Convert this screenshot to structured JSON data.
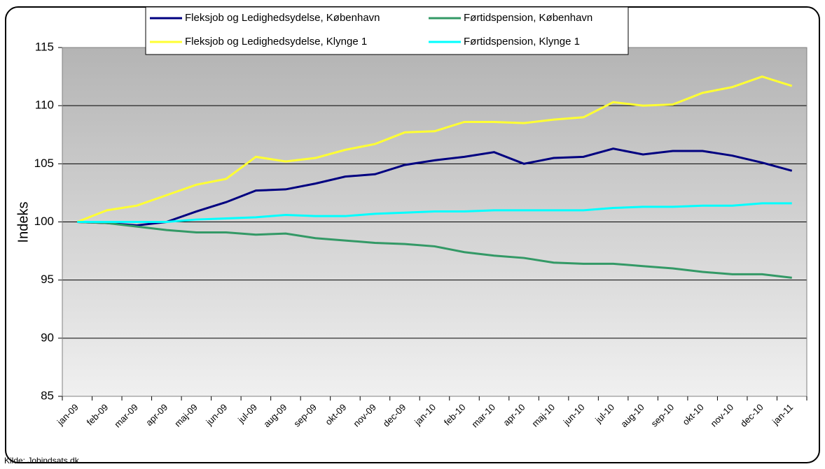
{
  "chart_data": {
    "type": "line",
    "y_label": "Indeks",
    "source": "Kilde: Jobindsats.dk",
    "categories": [
      "jan-09",
      "feb-09",
      "mar-09",
      "apr-09",
      "maj-09",
      "jun-09",
      "jul-09",
      "aug-09",
      "sep-09",
      "okt-09",
      "nov-09",
      "dec-09",
      "jan-10",
      "feb-10",
      "mar-10",
      "apr-10",
      "maj-10",
      "jun-10",
      "jul-10",
      "aug-10",
      "sep-10",
      "okt-10",
      "nov-10",
      "dec-10",
      "jan-11"
    ],
    "series": [
      {
        "name": "Fleksjob og Ledighedsydelse, København",
        "color": "#000080",
        "values": [
          100,
          99.9,
          99.7,
          100,
          100.9,
          101.7,
          102.7,
          102.8,
          103.3,
          103.9,
          104.1,
          104.9,
          105.3,
          105.6,
          106.0,
          105.0,
          105.5,
          105.6,
          106.3,
          105.8,
          106.1,
          106.1,
          105.7,
          105.1,
          104.4
        ]
      },
      {
        "name": "Førtidspension, København",
        "color": "#339966",
        "values": [
          100,
          99.9,
          99.6,
          99.3,
          99.1,
          99.1,
          98.9,
          99.0,
          98.6,
          98.4,
          98.2,
          98.1,
          97.9,
          97.4,
          97.1,
          96.9,
          96.5,
          96.4,
          96.4,
          96.2,
          96.0,
          95.7,
          95.5,
          95.5,
          95.2
        ]
      },
      {
        "name": "Fleksjob og Ledighedsydelse, Klynge 1",
        "color": "#ffff33",
        "values": [
          100,
          101.0,
          101.4,
          102.3,
          103.2,
          103.7,
          105.6,
          105.2,
          105.5,
          106.2,
          106.7,
          107.7,
          107.8,
          108.6,
          108.6,
          108.5,
          108.8,
          109.0,
          110.3,
          110.0,
          110.1,
          111.1,
          111.6,
          112.5,
          111.7
        ]
      },
      {
        "name": "Førtidspension, Klynge 1",
        "color": "#00ffff",
        "values": [
          100,
          100,
          100,
          100,
          100.2,
          100.3,
          100.4,
          100.6,
          100.5,
          100.5,
          100.7,
          100.8,
          100.9,
          100.9,
          101.0,
          101.0,
          101.0,
          101.0,
          101.2,
          101.3,
          101.3,
          101.4,
          101.4,
          101.6,
          101.6
        ]
      }
    ],
    "ylim": [
      85,
      115
    ],
    "yticks": [
      85,
      90,
      95,
      100,
      105,
      110,
      115
    ],
    "grid": true,
    "legend": "top"
  }
}
